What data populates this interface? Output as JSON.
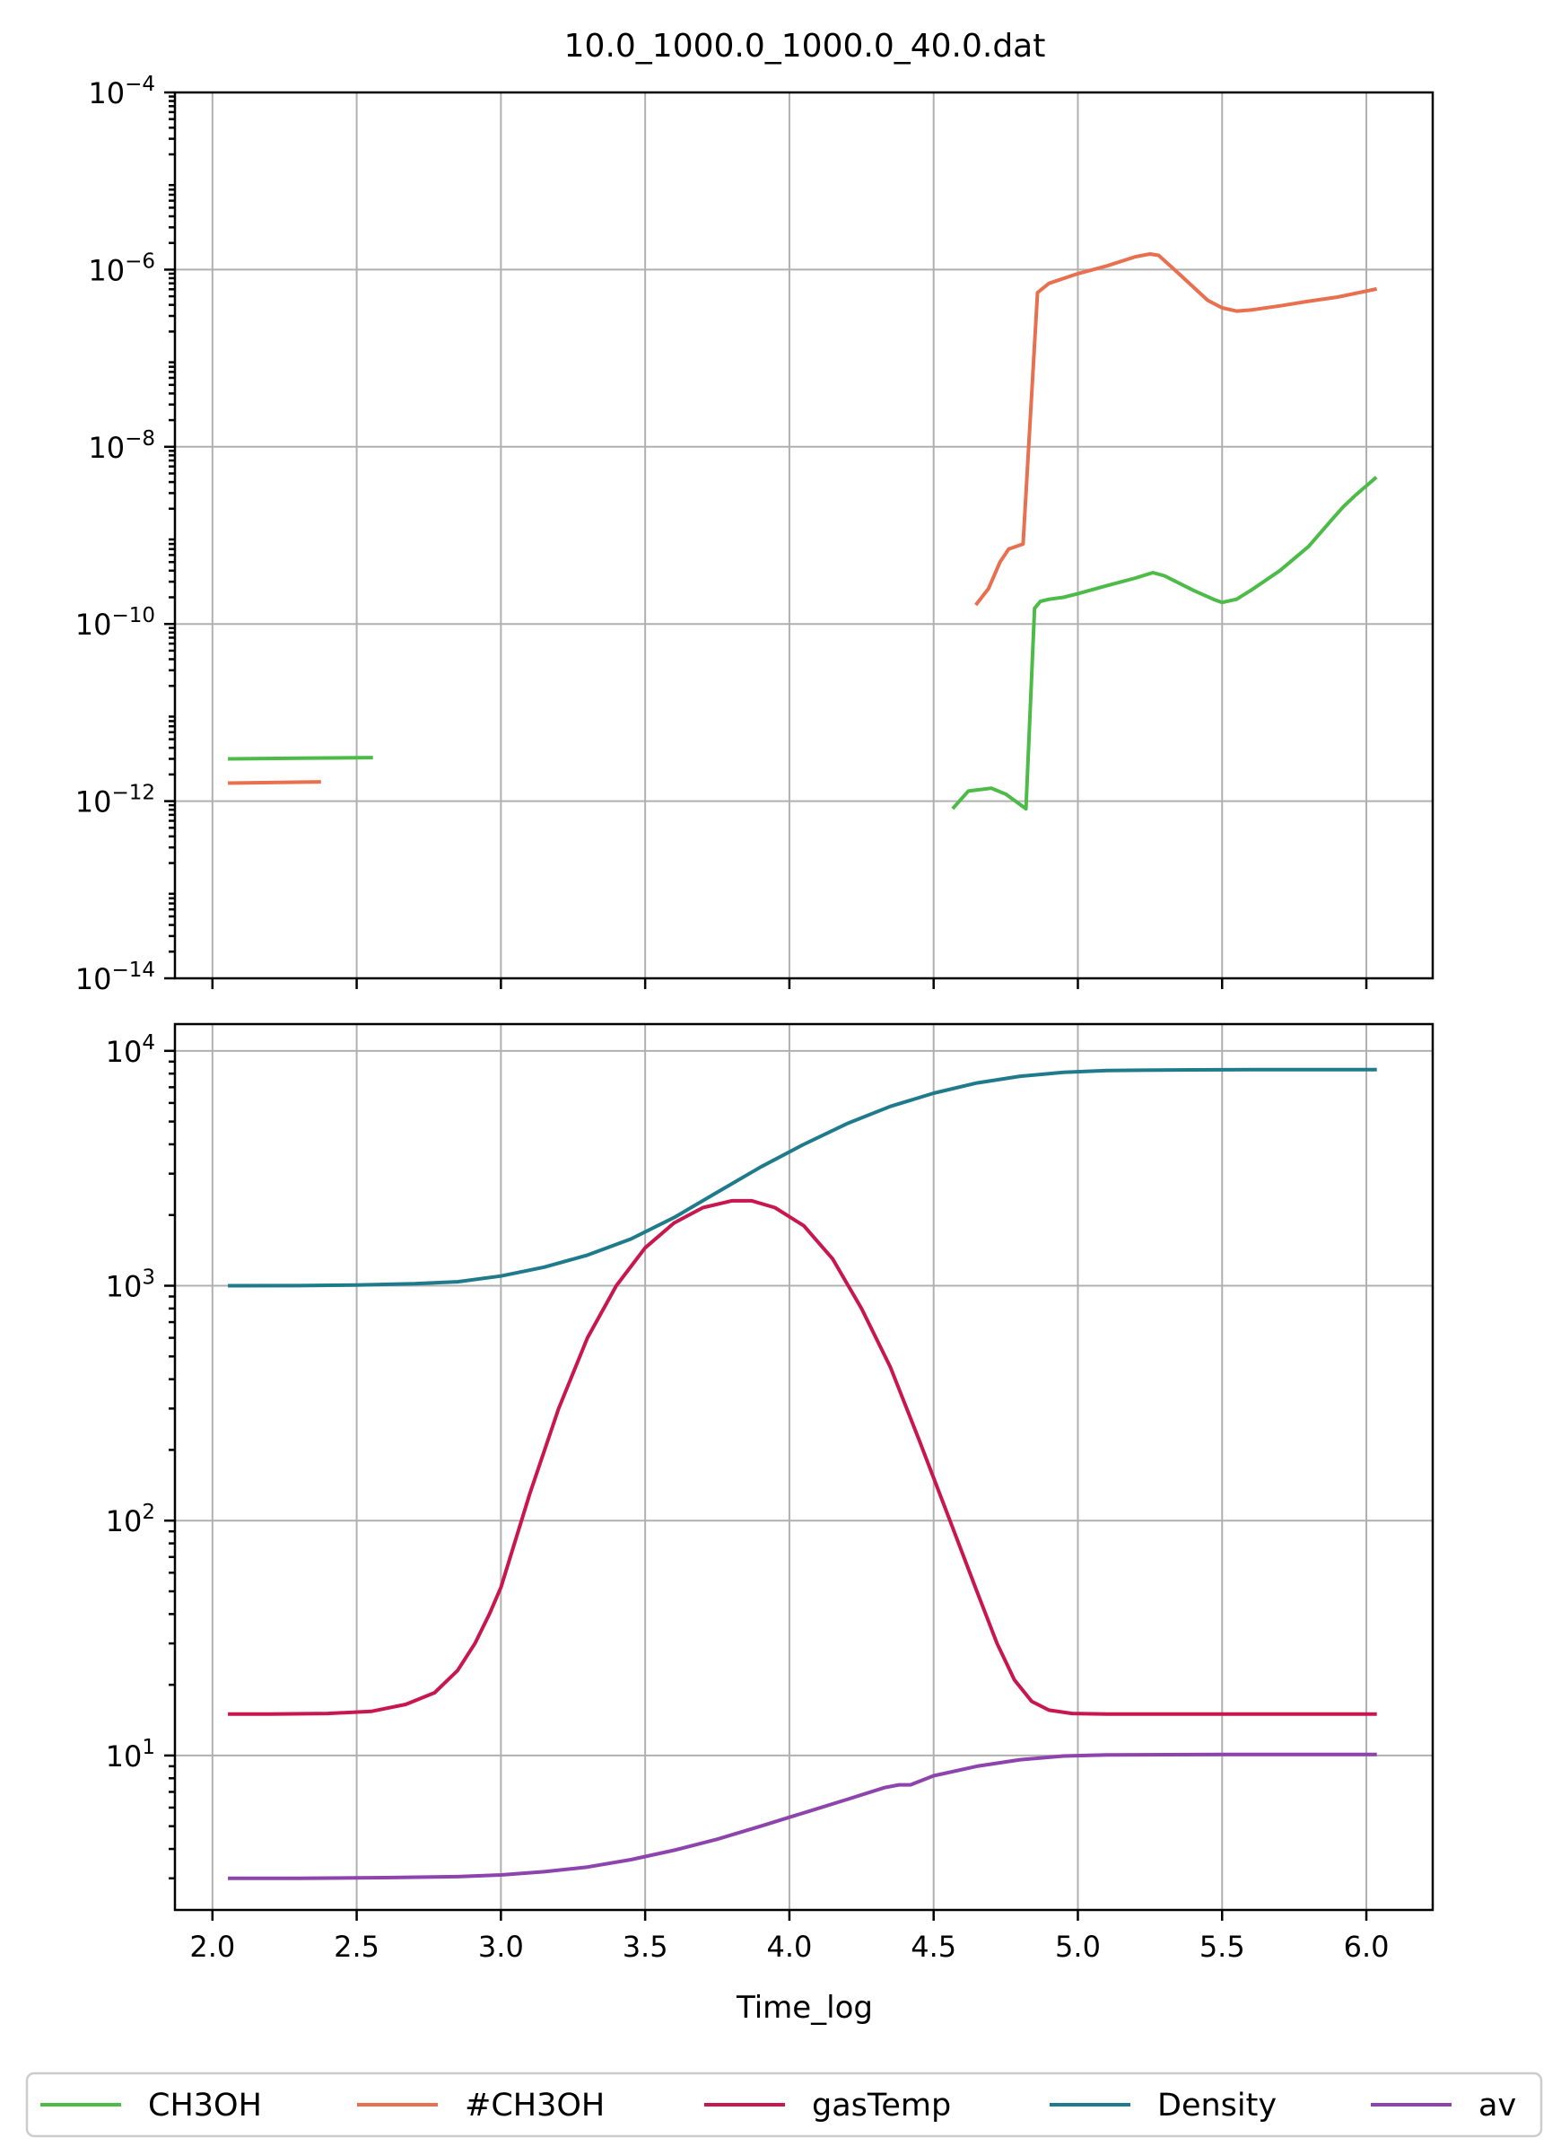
{
  "figure": {
    "title": "10.0_1000.0_1000.0_40.0.dat"
  },
  "colors": {
    "CH3OH": "#4cbb47",
    "#CH3OH": "#e8704f",
    "gasTemp": "#c8164e",
    "Density": "#1f7b8c",
    "av": "#8e44ad"
  },
  "chart_data": [
    {
      "type": "line",
      "scale_y": "log",
      "xlim": [
        1.87,
        6.23
      ],
      "ylim": [
        1e-14,
        0.0001
      ],
      "x_ticks": [
        2.0,
        2.5,
        3.0,
        3.5,
        4.0,
        4.5,
        5.0,
        5.5,
        6.0
      ],
      "y_ticks": [
        {
          "value": 0.0001,
          "base": "10",
          "exp": "−4"
        },
        {
          "value": 1e-06,
          "base": "10",
          "exp": "−6"
        },
        {
          "value": 1e-08,
          "base": "10",
          "exp": "−8"
        },
        {
          "value": 1e-10,
          "base": "10",
          "exp": "−10"
        },
        {
          "value": 1e-12,
          "base": "10",
          "exp": "−12"
        },
        {
          "value": 1e-14,
          "base": "10",
          "exp": "−14"
        }
      ],
      "grid": true,
      "series": [
        {
          "name": "CH3OH",
          "segments": [
            [
              [
                2.06,
                3e-12
              ],
              [
                2.3,
                3.05e-12
              ],
              [
                2.55,
                3.1e-12
              ]
            ],
            [
              [
                4.57,
                8.5e-13
              ],
              [
                4.62,
                1.3e-12
              ],
              [
                4.7,
                1.4e-12
              ],
              [
                4.75,
                1.2e-12
              ],
              [
                4.82,
                8.2e-13
              ],
              [
                4.85,
                1.5e-10
              ],
              [
                4.87,
                1.8e-10
              ],
              [
                4.9,
                1.9e-10
              ],
              [
                4.95,
                2e-10
              ],
              [
                5.0,
                2.2e-10
              ],
              [
                5.1,
                2.7e-10
              ],
              [
                5.2,
                3.3e-10
              ],
              [
                5.26,
                3.8e-10
              ],
              [
                5.3,
                3.5e-10
              ],
              [
                5.4,
                2.4e-10
              ],
              [
                5.47,
                1.9e-10
              ],
              [
                5.5,
                1.75e-10
              ],
              [
                5.55,
                1.9e-10
              ],
              [
                5.6,
                2.4e-10
              ],
              [
                5.7,
                4e-10
              ],
              [
                5.8,
                7.5e-10
              ],
              [
                5.88,
                1.5e-09
              ],
              [
                5.92,
                2.1e-09
              ],
              [
                5.96,
                2.8e-09
              ],
              [
                6.03,
                4.4e-09
              ]
            ]
          ]
        },
        {
          "name": "#CH3OH",
          "segments": [
            [
              [
                2.06,
                1.6e-12
              ],
              [
                2.2,
                1.62e-12
              ],
              [
                2.37,
                1.65e-12
              ]
            ],
            [
              [
                4.65,
                1.7e-10
              ],
              [
                4.69,
                2.5e-10
              ],
              [
                4.73,
                5e-10
              ],
              [
                4.76,
                7e-10
              ],
              [
                4.81,
                8e-10
              ],
              [
                4.86,
                5.5e-07
              ],
              [
                4.9,
                7e-07
              ],
              [
                5.0,
                9e-07
              ],
              [
                5.1,
                1.1e-06
              ],
              [
                5.2,
                1.4e-06
              ],
              [
                5.25,
                1.5e-06
              ],
              [
                5.28,
                1.45e-06
              ],
              [
                5.35,
                9e-07
              ],
              [
                5.45,
                4.5e-07
              ],
              [
                5.5,
                3.7e-07
              ],
              [
                5.55,
                3.4e-07
              ],
              [
                5.6,
                3.5e-07
              ],
              [
                5.7,
                3.9e-07
              ],
              [
                5.8,
                4.4e-07
              ],
              [
                5.9,
                4.9e-07
              ],
              [
                6.03,
                6e-07
              ]
            ]
          ]
        }
      ]
    },
    {
      "type": "line",
      "scale_y": "log",
      "xlim": [
        1.87,
        6.23
      ],
      "ylim": [
        2.2,
        13000
      ],
      "xlabel": "Time_log",
      "x_ticks": [
        2.0,
        2.5,
        3.0,
        3.5,
        4.0,
        4.5,
        5.0,
        5.5,
        6.0
      ],
      "x_tick_labels": [
        "2.0",
        "2.5",
        "3.0",
        "3.5",
        "4.0",
        "4.5",
        "5.0",
        "5.5",
        "6.0"
      ],
      "y_ticks": [
        {
          "value": 10000,
          "base": "10",
          "exp": "4"
        },
        {
          "value": 1000,
          "base": "10",
          "exp": "3"
        },
        {
          "value": 100,
          "base": "10",
          "exp": "2"
        },
        {
          "value": 10,
          "base": "10",
          "exp": "1"
        }
      ],
      "grid": true,
      "series": [
        {
          "name": "gasTemp",
          "points": [
            [
              2.06,
              15.0
            ],
            [
              2.2,
              15.0
            ],
            [
              2.4,
              15.1
            ],
            [
              2.55,
              15.4
            ],
            [
              2.67,
              16.5
            ],
            [
              2.77,
              18.5
            ],
            [
              2.85,
              23.0
            ],
            [
              2.91,
              30.0
            ],
            [
              2.96,
              40.0
            ],
            [
              3.0,
              52.0
            ],
            [
              3.1,
              130.0
            ],
            [
              3.2,
              300.0
            ],
            [
              3.3,
              600.0
            ],
            [
              3.4,
              1000.0
            ],
            [
              3.5,
              1450.0
            ],
            [
              3.6,
              1850.0
            ],
            [
              3.7,
              2150.0
            ],
            [
              3.8,
              2300.0
            ],
            [
              3.87,
              2300.0
            ],
            [
              3.95,
              2150.0
            ],
            [
              4.05,
              1800.0
            ],
            [
              4.15,
              1300.0
            ],
            [
              4.25,
              800.0
            ],
            [
              4.35,
              450.0
            ],
            [
              4.45,
              220.0
            ],
            [
              4.55,
              105.0
            ],
            [
              4.65,
              50.0
            ],
            [
              4.72,
              30.0
            ],
            [
              4.78,
              21.0
            ],
            [
              4.84,
              17.0
            ],
            [
              4.9,
              15.6
            ],
            [
              4.98,
              15.1
            ],
            [
              5.1,
              15.0
            ],
            [
              5.5,
              15.0
            ],
            [
              6.03,
              15.0
            ]
          ]
        },
        {
          "name": "Density",
          "points": [
            [
              2.06,
              1000.0
            ],
            [
              2.3,
              1001.0
            ],
            [
              2.5,
              1007.0
            ],
            [
              2.7,
              1020.0
            ],
            [
              2.85,
              1040.0
            ],
            [
              3.0,
              1100.0
            ],
            [
              3.15,
              1200.0
            ],
            [
              3.3,
              1350.0
            ],
            [
              3.45,
              1580.0
            ],
            [
              3.6,
              1950.0
            ],
            [
              3.75,
              2500.0
            ],
            [
              3.9,
              3200.0
            ],
            [
              4.05,
              4000.0
            ],
            [
              4.2,
              4900.0
            ],
            [
              4.35,
              5800.0
            ],
            [
              4.5,
              6600.0
            ],
            [
              4.65,
              7300.0
            ],
            [
              4.8,
              7800.0
            ],
            [
              4.95,
              8100.0
            ],
            [
              5.1,
              8250.0
            ],
            [
              5.4,
              8300.0
            ],
            [
              5.7,
              8320.0
            ],
            [
              6.03,
              8320.0
            ]
          ]
        },
        {
          "name": "av",
          "points": [
            [
              2.06,
              3.0
            ],
            [
              2.3,
              3.0
            ],
            [
              2.6,
              3.02
            ],
            [
              2.85,
              3.05
            ],
            [
              3.0,
              3.1
            ],
            [
              3.15,
              3.2
            ],
            [
              3.3,
              3.35
            ],
            [
              3.45,
              3.6
            ],
            [
              3.6,
              3.95
            ],
            [
              3.75,
              4.4
            ],
            [
              3.9,
              5.0
            ],
            [
              4.05,
              5.7
            ],
            [
              4.2,
              6.5
            ],
            [
              4.33,
              7.3
            ],
            [
              4.38,
              7.5
            ],
            [
              4.42,
              7.5
            ],
            [
              4.5,
              8.2
            ],
            [
              4.65,
              9.0
            ],
            [
              4.8,
              9.6
            ],
            [
              4.95,
              9.95
            ],
            [
              5.1,
              10.05
            ],
            [
              5.5,
              10.1
            ],
            [
              6.03,
              10.1
            ]
          ]
        }
      ]
    }
  ],
  "legend": {
    "position": "bottom-center",
    "items": [
      {
        "label": "CH3OH",
        "color": "#4cbb47"
      },
      {
        "label": "#CH3OH",
        "color": "#e8704f"
      },
      {
        "label": "gasTemp",
        "color": "#c8164e"
      },
      {
        "label": "Density",
        "color": "#1f7b8c"
      },
      {
        "label": "av",
        "color": "#8e44ad"
      }
    ]
  }
}
